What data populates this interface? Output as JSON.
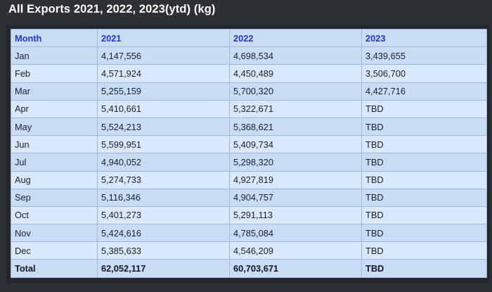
{
  "title": "All Exports 2021, 2022, 2023(ytd) (kg)",
  "table": {
    "headers": [
      "Month",
      "2021",
      "2022",
      "2023"
    ],
    "rows": [
      [
        "Jan",
        "4,147,556",
        "4,698,534",
        "3,439,655"
      ],
      [
        "Feb",
        "4,571,924",
        "4,450,489",
        "3,506,700"
      ],
      [
        "Mar",
        "5,255,159",
        "5,700,320",
        "4,427,716"
      ],
      [
        "Apr",
        "5,410,661",
        "5,322,671",
        "TBD"
      ],
      [
        "May",
        "5,524,213",
        "5,368,621",
        "TBD"
      ],
      [
        "Jun",
        "5,599,951",
        "5,409,734",
        "TBD"
      ],
      [
        "Jul",
        "4,940,052",
        "5,298,320",
        "TBD"
      ],
      [
        "Aug",
        "5,274,733",
        "4,927,819",
        "TBD"
      ],
      [
        "Sep",
        "5,116,346",
        "4,904,757",
        "TBD"
      ],
      [
        "Oct",
        "5,401,273",
        "5,291,113",
        "TBD"
      ],
      [
        "Nov",
        "5,424,616",
        "4,785,084",
        "TBD"
      ],
      [
        "Dec",
        "5,385,633",
        "4,546,209",
        "TBD"
      ]
    ],
    "total": [
      "Total",
      "62,052,117",
      "60,703,671",
      "TBD"
    ]
  }
}
